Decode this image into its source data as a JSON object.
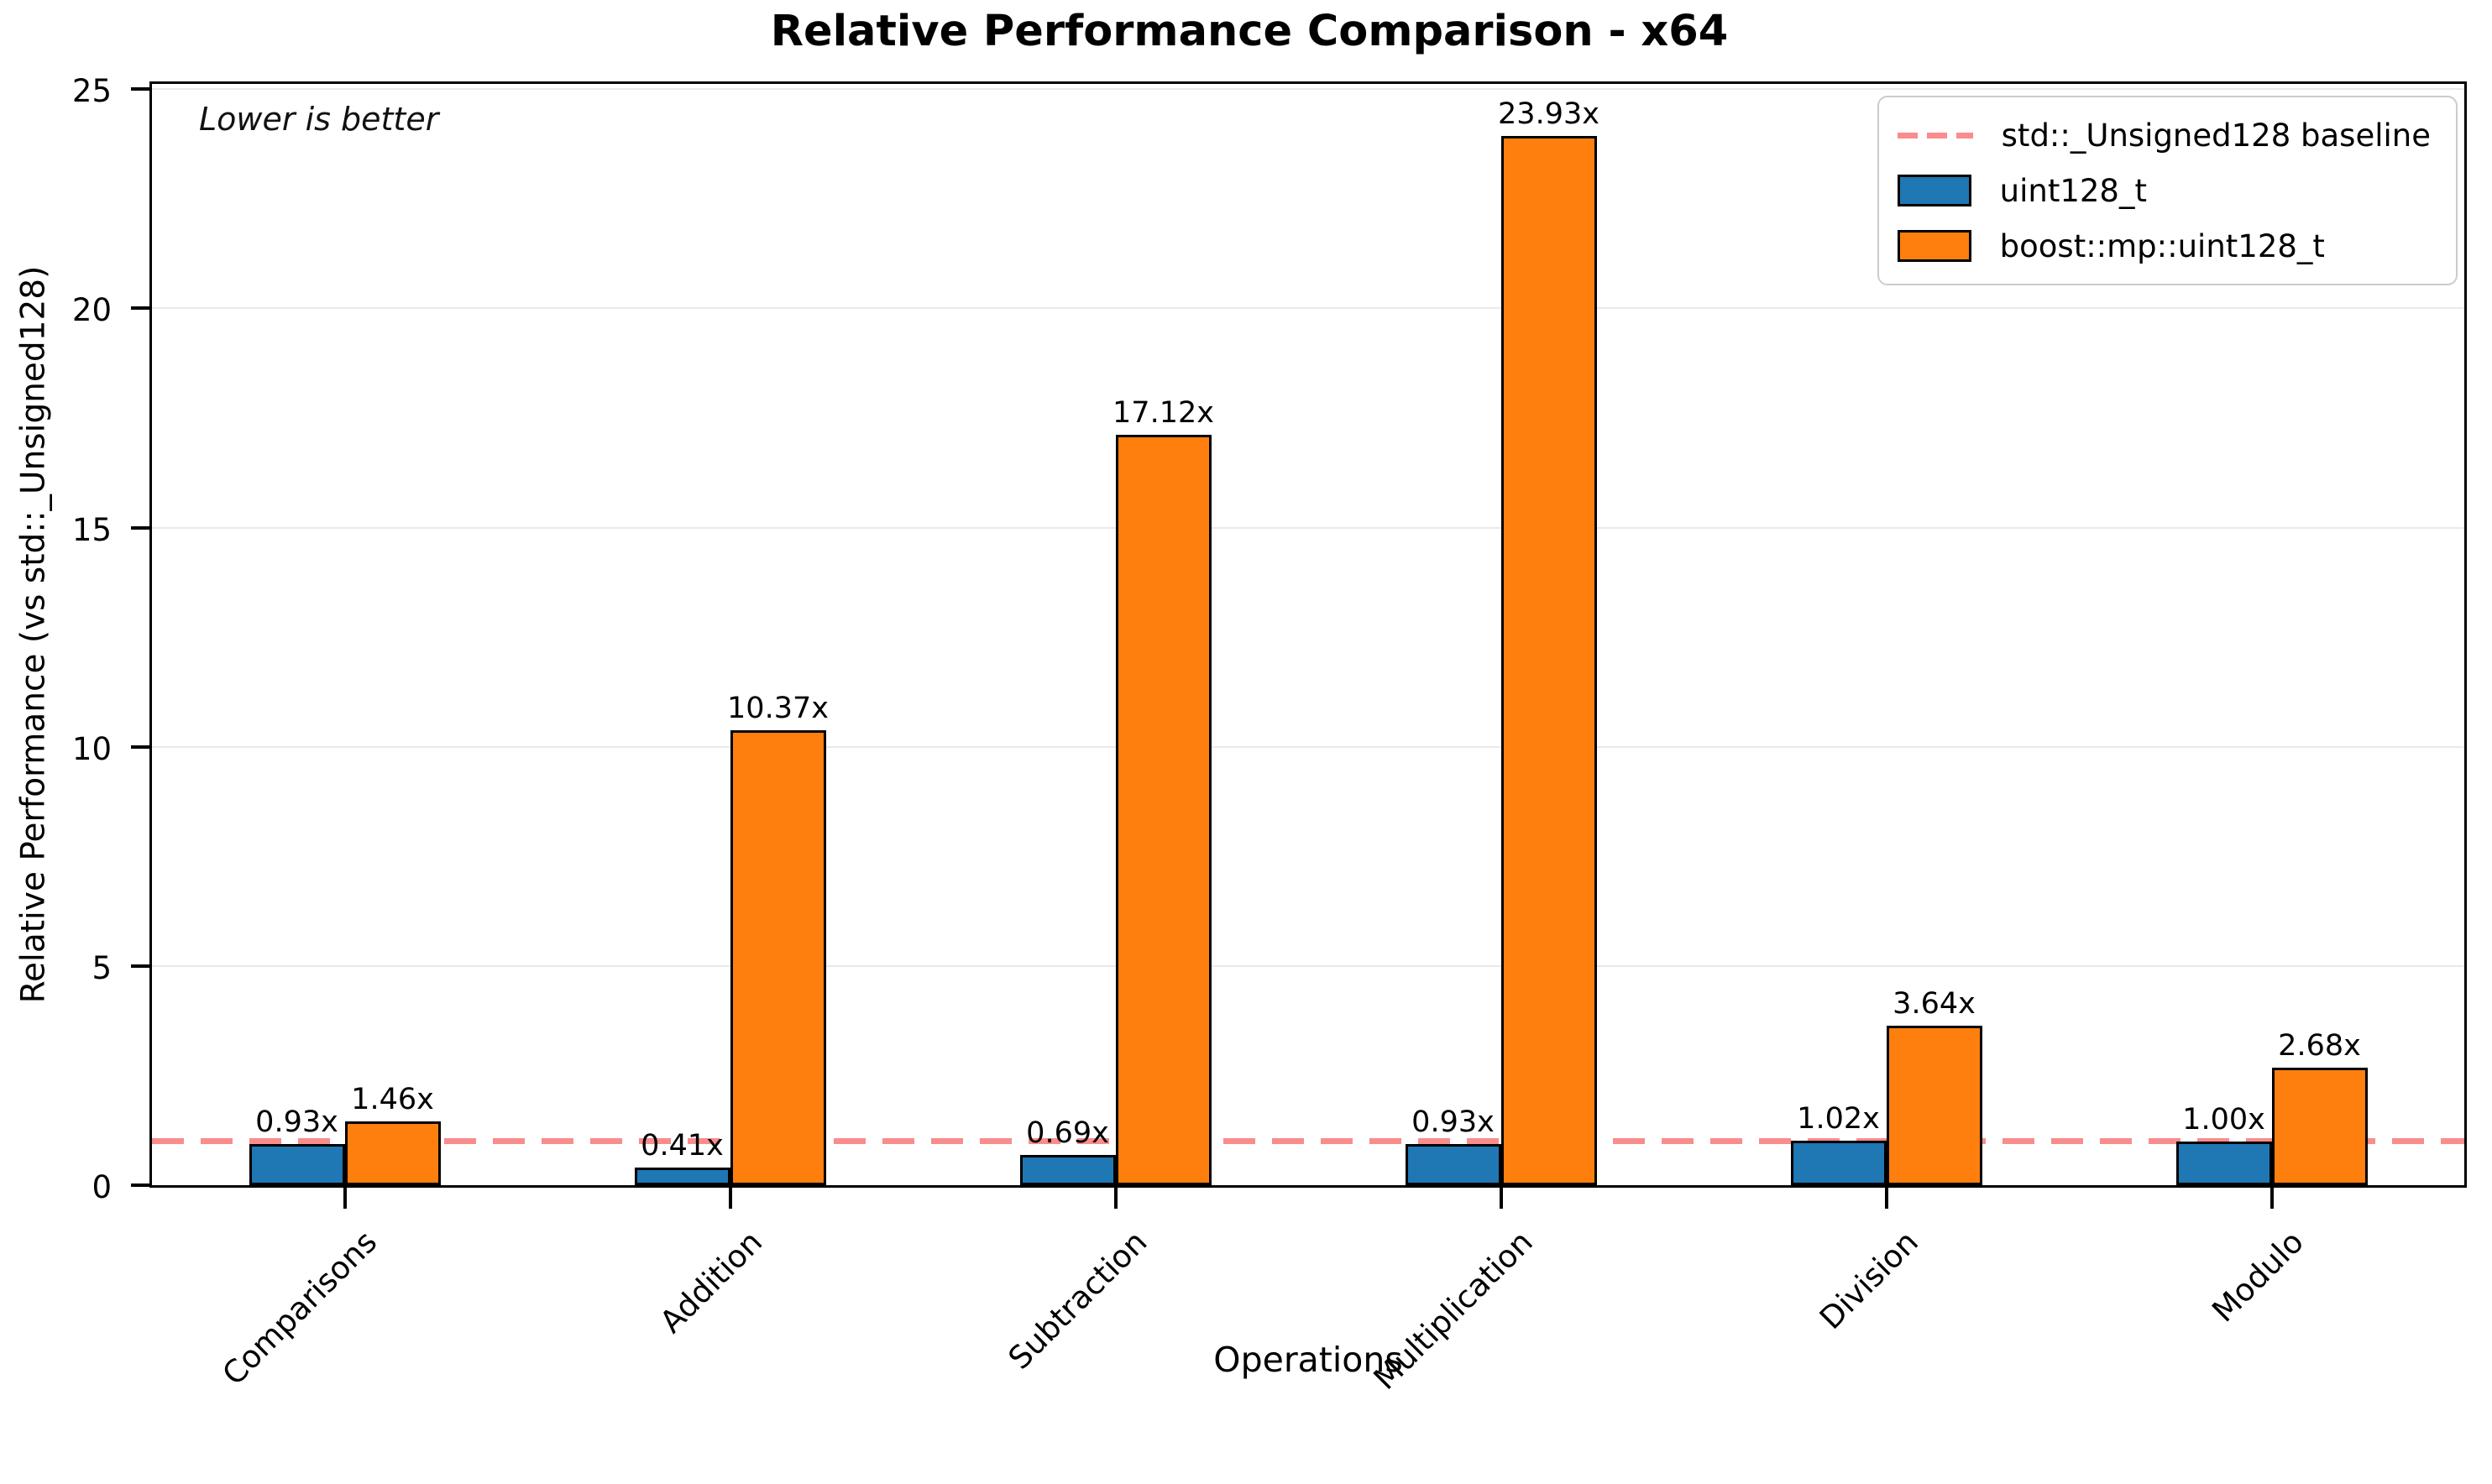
{
  "title": "Relative Performance Comparison - x64",
  "annotation": "Lower is better",
  "axes": {
    "x_label": "Operations",
    "y_label": "Relative Performance (vs std::_Unsigned128)",
    "y_ticks": [
      0,
      5,
      10,
      15,
      20,
      25
    ]
  },
  "legend": {
    "baseline_label": "std::_Unsigned128 baseline",
    "series1_label": "uint128_t",
    "series2_label": "boost::mp::uint128_t"
  },
  "colors": {
    "series1": "#1f77b4",
    "series2": "#ff7f0e",
    "baseline_line": "#f98c8c",
    "bar_edge": "#000000",
    "gridline": "#e9e9e9",
    "legend_border": "#cccccc"
  },
  "chart_data": {
    "type": "bar",
    "title": "Relative Performance Comparison - x64",
    "xlabel": "Operations",
    "ylabel": "Relative Performance (vs std::_Unsigned128)",
    "categories": [
      "Comparisons",
      "Addition",
      "Subtraction",
      "Multiplication",
      "Division",
      "Modulo"
    ],
    "series": [
      {
        "name": "uint128_t",
        "color": "#1f77b4",
        "values": [
          0.93,
          0.41,
          0.69,
          0.93,
          1.02,
          1.0
        ],
        "labels": [
          "0.93x",
          "0.41x",
          "0.69x",
          "0.93x",
          "1.02x",
          "1.00x"
        ]
      },
      {
        "name": "boost::mp::uint128_t",
        "color": "#ff7f0e",
        "values": [
          1.46,
          10.37,
          17.12,
          23.93,
          3.64,
          2.68
        ],
        "labels": [
          "1.46x",
          "10.37x",
          "17.12x",
          "23.93x",
          "3.64x",
          "2.68x"
        ]
      }
    ],
    "baseline": {
      "value": 1.0,
      "label": "std::_Unsigned128 baseline",
      "color": "#f98c8c"
    },
    "annotation": "Lower is better",
    "ylim": [
      0,
      25.12
    ],
    "y_ticks": [
      0,
      5,
      10,
      15,
      20,
      25
    ],
    "grid": true,
    "legend_position": "upper right"
  }
}
